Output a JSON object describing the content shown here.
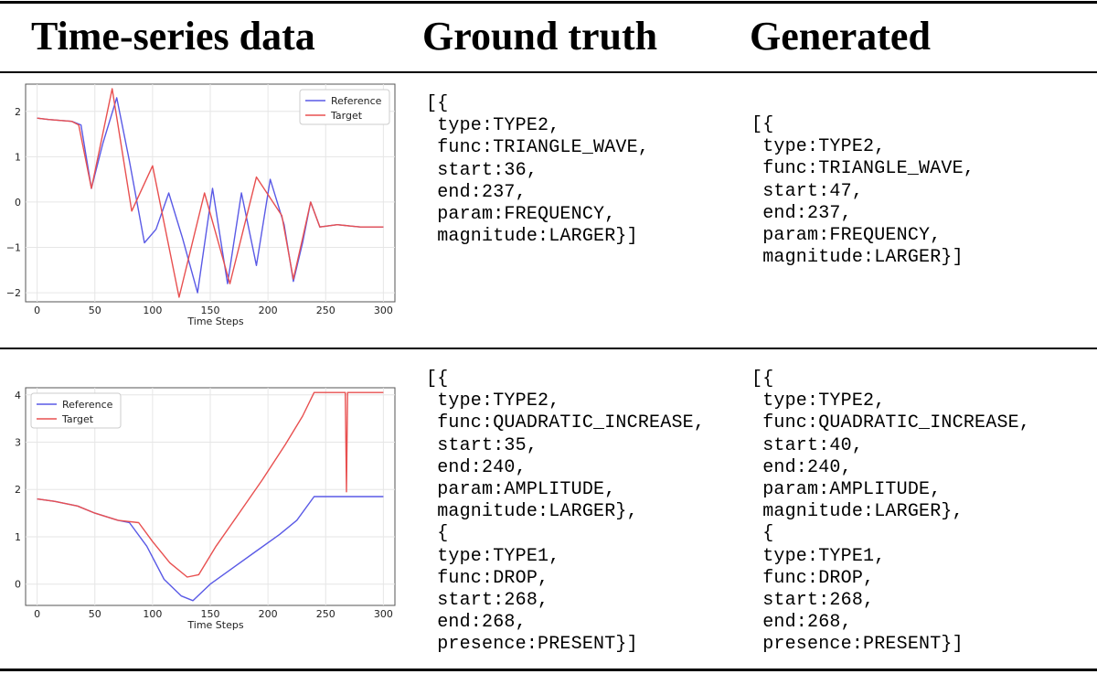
{
  "header": {
    "col1": "Time-series data",
    "col2": "Ground truth",
    "col3": "Generated"
  },
  "rows": [
    {
      "ground_truth": "[{\n type:TYPE2,\n func:TRIANGLE_WAVE,\n start:36,\n end:237,\n param:FREQUENCY,\n magnitude:LARGER}]",
      "generated": "[{\n type:TYPE2,\n func:TRIANGLE_WAVE,\n start:47,\n end:237,\n param:FREQUENCY,\n magnitude:LARGER}]"
    },
    {
      "ground_truth": "[{\n type:TYPE2,\n func:QUADRATIC_INCREASE,\n start:35,\n end:240,\n param:AMPLITUDE,\n magnitude:LARGER},\n {\n type:TYPE1,\n func:DROP,\n start:268,\n end:268,\n presence:PRESENT}]",
      "generated": "[{\n type:TYPE2,\n func:QUADRATIC_INCREASE,\n start:40,\n end:240,\n param:AMPLITUDE,\n magnitude:LARGER},\n {\n type:TYPE1,\n func:DROP,\n start:268,\n end:268,\n presence:PRESENT}]"
    }
  ],
  "chart_data": [
    {
      "type": "line",
      "xlabel": "Time Steps",
      "ylabel": "",
      "xlim": [
        -10,
        310
      ],
      "ylim": [
        -2.2,
        2.6
      ],
      "xticks": [
        0,
        50,
        100,
        150,
        200,
        250,
        300
      ],
      "yticks": [
        -2,
        -1,
        0,
        1,
        2
      ],
      "legend_position": "top-right",
      "grid": true,
      "series": [
        {
          "name": "Reference",
          "color": "#5a5ae6",
          "x": [
            0,
            10,
            20,
            30,
            38,
            47,
            57,
            69,
            80,
            93,
            103,
            114,
            126,
            139,
            152,
            165,
            177,
            190,
            202,
            214,
            222,
            230,
            237,
            245,
            260,
            280,
            300
          ],
          "y": [
            1.85,
            1.82,
            1.8,
            1.78,
            1.7,
            0.3,
            1.3,
            2.3,
            0.9,
            -0.9,
            -0.6,
            0.2,
            -0.8,
            -2.0,
            0.3,
            -1.8,
            0.2,
            -1.4,
            0.5,
            -0.5,
            -1.75,
            -0.9,
            0.0,
            -0.55,
            -0.5,
            -0.55,
            -0.55
          ]
        },
        {
          "name": "Target",
          "color": "#e85050",
          "x": [
            0,
            10,
            20,
            30,
            36,
            47,
            65,
            82,
            100,
            123,
            145,
            167,
            190,
            212,
            222,
            230,
            237,
            245,
            260,
            280,
            300
          ],
          "y": [
            1.85,
            1.82,
            1.8,
            1.78,
            1.7,
            0.3,
            2.5,
            -0.2,
            0.8,
            -2.1,
            0.2,
            -1.8,
            0.55,
            -0.3,
            -1.7,
            -0.8,
            0.0,
            -0.55,
            -0.5,
            -0.55,
            -0.55
          ]
        }
      ]
    },
    {
      "type": "line",
      "xlabel": "Time Steps",
      "ylabel": "",
      "xlim": [
        -10,
        310
      ],
      "ylim": [
        -0.45,
        4.15
      ],
      "xticks": [
        0,
        50,
        100,
        150,
        200,
        250,
        300
      ],
      "yticks": [
        0,
        1,
        2,
        3,
        4
      ],
      "legend_position": "top-left",
      "grid": true,
      "series": [
        {
          "name": "Reference",
          "color": "#5a5ae6",
          "x": [
            0,
            15,
            35,
            50,
            70,
            80,
            95,
            110,
            125,
            135,
            150,
            170,
            190,
            210,
            225,
            240,
            260,
            280,
            300
          ],
          "y": [
            1.8,
            1.75,
            1.65,
            1.5,
            1.35,
            1.3,
            0.8,
            0.1,
            -0.25,
            -0.35,
            0.0,
            0.35,
            0.7,
            1.05,
            1.35,
            1.85,
            1.85,
            1.85,
            1.85
          ]
        },
        {
          "name": "Target",
          "color": "#e85050",
          "x": [
            0,
            15,
            35,
            50,
            70,
            88,
            100,
            115,
            130,
            140,
            155,
            175,
            195,
            215,
            230,
            240,
            260,
            267,
            268,
            269,
            280,
            300
          ],
          "y": [
            1.8,
            1.75,
            1.65,
            1.5,
            1.35,
            1.3,
            0.9,
            0.45,
            0.15,
            0.2,
            0.8,
            1.5,
            2.2,
            2.95,
            3.55,
            4.05,
            4.05,
            4.05,
            1.95,
            4.05,
            4.05,
            4.05
          ]
        }
      ]
    }
  ]
}
